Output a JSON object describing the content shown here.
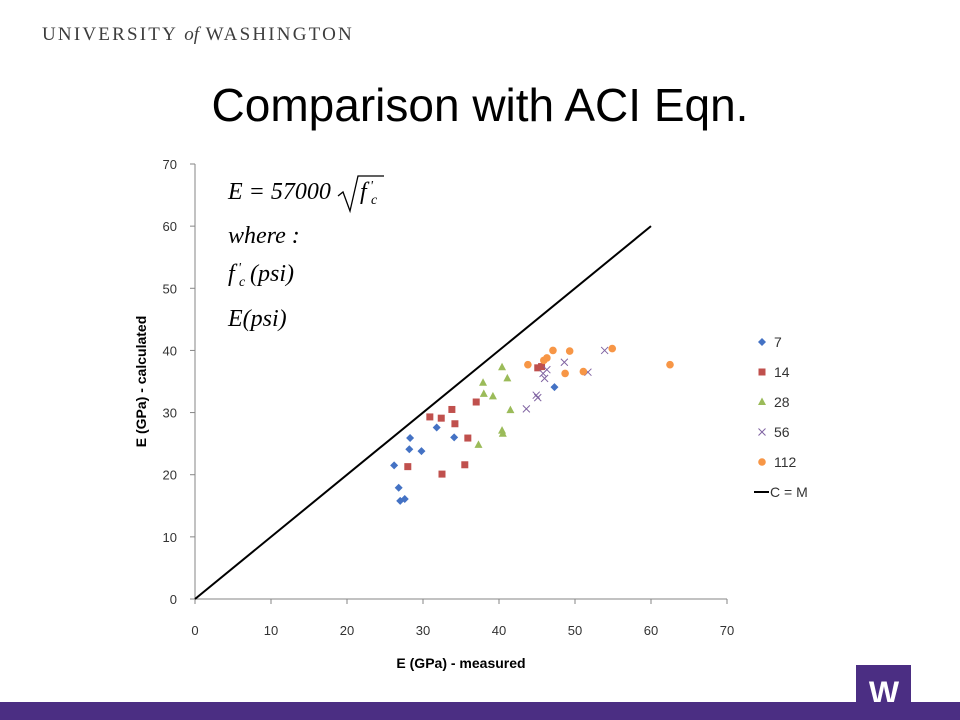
{
  "header": {
    "pre": "UNIVERSITY",
    "of": "of",
    "post": "WASHINGTON"
  },
  "slide": {
    "title": "Comparison with ACI Eqn."
  },
  "formula": {
    "line1_lhs": "E = 57000",
    "line1_rad": "f",
    "line2": "where :",
    "line3": "f",
    "line3_rest": "(psi)",
    "line4": "E(psi)",
    "sub": "c",
    "prime": "'"
  },
  "logo": {
    "letter": "W"
  },
  "colors": {
    "s7": "#4472C4",
    "s14": "#C0504D",
    "s28": "#9BBB59",
    "s56": "#8064A2",
    "s112": "#F79646",
    "line": "#000000",
    "brand": "#4b2e83"
  },
  "chart_data": {
    "type": "scatter",
    "xlabel": "E (GPa) - measured",
    "ylabel": "E (GPa) - calculated",
    "xlim": [
      0,
      70
    ],
    "ylim": [
      0,
      70
    ],
    "xticks": [
      "0",
      "10",
      "20",
      "30",
      "40",
      "50",
      "60",
      "70"
    ],
    "yticks": [
      "0",
      "10",
      "20",
      "30",
      "40",
      "50",
      "60",
      "70"
    ],
    "grid": false,
    "legend_position": "right",
    "series": [
      {
        "name": "7",
        "marker": "diamond",
        "color": "#4472C4",
        "points": [
          [
            26.2,
            21.5
          ],
          [
            26.8,
            17.9
          ],
          [
            27.0,
            15.8
          ],
          [
            27.6,
            16.1
          ],
          [
            28.2,
            24.1
          ],
          [
            28.3,
            25.9
          ],
          [
            29.8,
            23.8
          ],
          [
            31.8,
            27.6
          ],
          [
            34.1,
            26.0
          ],
          [
            47.3,
            34.1
          ]
        ]
      },
      {
        "name": "14",
        "marker": "square",
        "color": "#C0504D",
        "points": [
          [
            28.0,
            21.3
          ],
          [
            30.9,
            29.3
          ],
          [
            32.4,
            29.1
          ],
          [
            32.5,
            20.1
          ],
          [
            33.8,
            30.5
          ],
          [
            34.2,
            28.2
          ],
          [
            35.5,
            21.6
          ],
          [
            35.9,
            25.9
          ],
          [
            37.0,
            31.7
          ],
          [
            45.1,
            37.2
          ],
          [
            45.6,
            37.4
          ]
        ]
      },
      {
        "name": "28",
        "marker": "triangle",
        "color": "#9BBB59",
        "points": [
          [
            37.3,
            24.8
          ],
          [
            37.9,
            34.8
          ],
          [
            38.0,
            33.0
          ],
          [
            39.2,
            32.6
          ],
          [
            40.4,
            37.3
          ],
          [
            40.4,
            27.1
          ],
          [
            40.5,
            26.6
          ],
          [
            41.1,
            35.5
          ],
          [
            41.5,
            30.4
          ]
        ]
      },
      {
        "name": "56",
        "marker": "x",
        "color": "#8064A2",
        "points": [
          [
            43.6,
            30.6
          ],
          [
            44.9,
            32.8
          ],
          [
            45.1,
            32.4
          ],
          [
            45.8,
            36.3
          ],
          [
            46.0,
            35.5
          ],
          [
            46.3,
            36.9
          ],
          [
            48.6,
            38.1
          ],
          [
            51.7,
            36.5
          ],
          [
            53.9,
            40.0
          ]
        ]
      },
      {
        "name": "112",
        "marker": "circle",
        "color": "#F79646",
        "points": [
          [
            43.8,
            37.7
          ],
          [
            45.9,
            38.4
          ],
          [
            46.3,
            38.8
          ],
          [
            47.1,
            40.0
          ],
          [
            48.7,
            36.3
          ],
          [
            49.3,
            39.9
          ],
          [
            51.1,
            36.6
          ],
          [
            54.9,
            40.3
          ],
          [
            62.5,
            37.7
          ]
        ]
      },
      {
        "name": "C = M",
        "marker": "line",
        "color": "#000000",
        "points": [
          [
            0,
            0
          ],
          [
            60,
            60
          ]
        ]
      }
    ]
  }
}
